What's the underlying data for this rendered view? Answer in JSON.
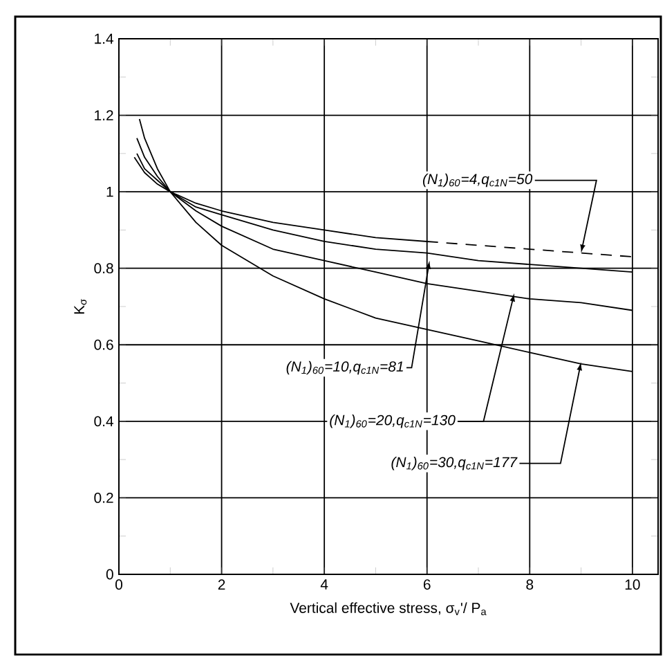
{
  "chart_data": {
    "type": "line",
    "xlabel": "Vertical effective stress, σ$_{v}$'/ P$_{a}$",
    "ylabel": "K$_{σ}$",
    "xlim": [
      0,
      10.5
    ],
    "ylim": [
      0,
      1.4
    ],
    "xticks": [
      0,
      {
        "value": 1,
        "label": null
      },
      2,
      {
        "value": 3,
        "label": null
      },
      4,
      {
        "value": 5,
        "label": null
      },
      6,
      {
        "value": 7,
        "label": null
      },
      8,
      {
        "value": 9,
        "label": null
      },
      10
    ],
    "yticks": [
      0,
      {
        "value": 0.1,
        "label": null
      },
      0.2,
      {
        "value": 0.3,
        "label": null
      },
      0.4,
      {
        "value": 0.5,
        "label": null
      },
      0.6,
      {
        "value": 0.7,
        "label": null
      },
      0.8,
      {
        "value": 0.9,
        "label": null
      },
      1,
      {
        "value": 1.1,
        "label": null
      },
      1.2,
      {
        "value": 1.3,
        "label": null
      },
      1.4
    ],
    "grid": true,
    "marker": "none",
    "series": [
      {
        "color": "#000000",
        "line_style": "solid",
        "x": [
          0.3,
          0.5,
          0.75,
          1,
          1.5,
          2,
          3,
          4,
          5,
          6
        ],
        "values": [
          1.09,
          1.05,
          1.02,
          1,
          0.97,
          0.95,
          0.92,
          0.9,
          0.88,
          0.87
        ]
      },
      {
        "color": "#000000",
        "line_style": "dashed",
        "x": [
          6,
          7,
          8,
          9,
          10
        ],
        "values": [
          0.87,
          0.86,
          0.85,
          0.84,
          0.83
        ]
      },
      {
        "color": "#000000",
        "line_style": "solid",
        "x": [
          0.35,
          0.5,
          0.75,
          1,
          1.5,
          2,
          3,
          4,
          5,
          6,
          7,
          8,
          9,
          10
        ],
        "values": [
          1.1,
          1.06,
          1.03,
          1,
          0.96,
          0.94,
          0.9,
          0.87,
          0.85,
          0.84,
          0.82,
          0.81,
          0.8,
          0.79
        ]
      },
      {
        "color": "#000000",
        "line_style": "solid",
        "x": [
          0.35,
          0.5,
          0.75,
          1,
          1.5,
          2,
          3,
          4,
          5,
          6,
          7,
          8,
          9,
          10
        ],
        "values": [
          1.14,
          1.09,
          1.04,
          1,
          0.95,
          0.91,
          0.85,
          0.82,
          0.79,
          0.76,
          0.74,
          0.72,
          0.71,
          0.69
        ]
      },
      {
        "color": "#000000",
        "line_style": "solid",
        "x": [
          0.4,
          0.5,
          0.75,
          1,
          1.5,
          2,
          3,
          4,
          5,
          6,
          7,
          8,
          9,
          10
        ],
        "values": [
          1.19,
          1.14,
          1.06,
          1,
          0.92,
          0.86,
          0.78,
          0.72,
          0.67,
          0.64,
          0.61,
          0.58,
          0.55,
          0.53
        ]
      }
    ],
    "annotations": [
      {
        "text": "(N$_{1}$)$_{60}$=4,q$_{c1N}$=50",
        "x": 9.0,
        "y": 0.84
      },
      {
        "text": "(N$_{1}$)$_{60}$=10,q$_{c1N}$=81",
        "x": 6.05,
        "y": 0.82
      },
      {
        "text": "(N$_{1}$)$_{60}$=20,q$_{c1N}$=130",
        "x": 7.7,
        "y": 0.735
      },
      {
        "text": "(N$_{1}$)$_{60}$=30,q$_{c1N}$=177",
        "x": 9.0,
        "y": 0.555
      }
    ]
  }
}
